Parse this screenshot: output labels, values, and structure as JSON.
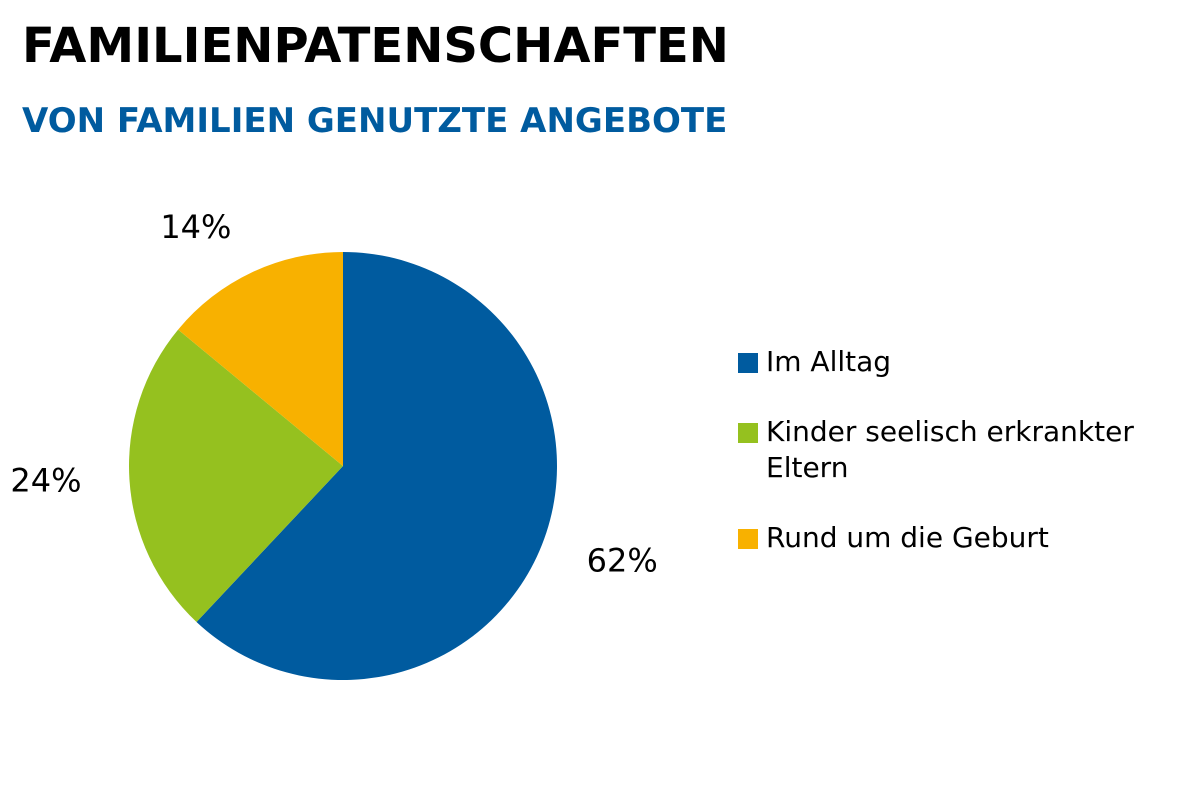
{
  "colors": {
    "text": "#000000",
    "accent": "#005B9F"
  },
  "chart_data": {
    "type": "pie",
    "title": "FAMILIENPATENSCHAFTEN",
    "subtitle": "VON FAMILIEN GENUTZTE ANGEBOTE",
    "legend_position": "right",
    "slices": [
      {
        "label": "Im Alltag",
        "value": 62,
        "value_label": "62%",
        "color": "#005B9F"
      },
      {
        "label": "Kinder seelisch erkrankter Eltern",
        "value": 24,
        "value_label": "24%",
        "color": "#95C11F"
      },
      {
        "label": "Rund um die Geburt",
        "value": 14,
        "value_label": "14%",
        "color": "#F8B100"
      }
    ]
  }
}
